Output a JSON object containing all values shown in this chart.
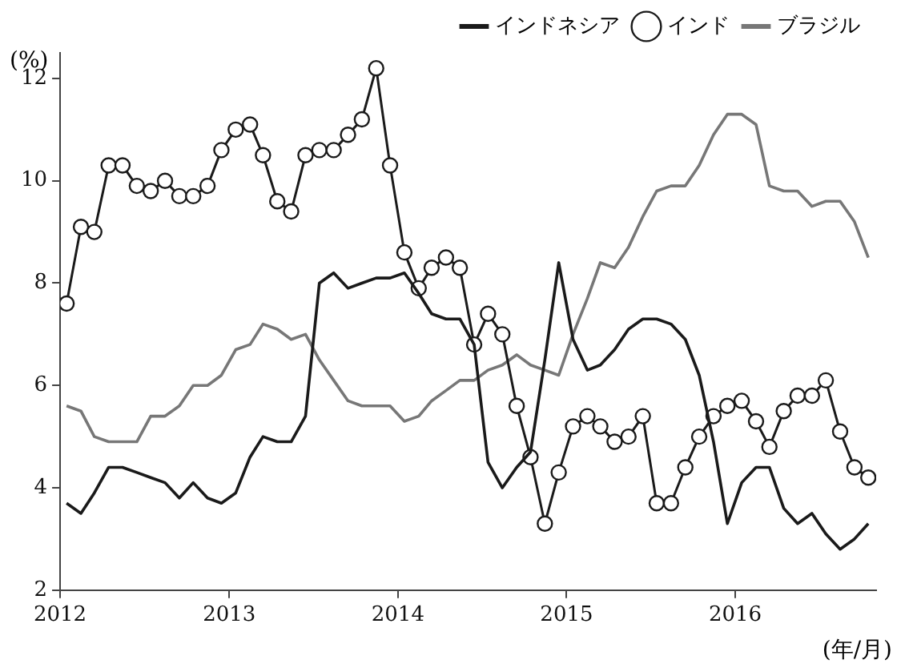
{
  "chart_data": {
    "type": "line",
    "ylabel": "(%)",
    "xlabel": "(年/月)",
    "xlim": [
      "2012-01-01",
      "2016-11-01"
    ],
    "xticks": [
      "2012",
      "2013",
      "2014",
      "2015",
      "2016"
    ],
    "ylim": [
      2,
      12.5
    ],
    "yticks": [
      2,
      4,
      6,
      8,
      10,
      12
    ],
    "grid": false,
    "legend": "top right",
    "x": [
      "2012-01-15",
      "2012-02-15",
      "2012-03-15",
      "2012-04-15",
      "2012-05-15",
      "2012-06-15",
      "2012-07-15",
      "2012-08-15",
      "2012-09-15",
      "2012-10-15",
      "2012-11-15",
      "2012-12-15",
      "2013-01-15",
      "2013-02-15",
      "2013-03-15",
      "2013-04-15",
      "2013-05-15",
      "2013-06-15",
      "2013-07-15",
      "2013-08-15",
      "2013-09-15",
      "2013-10-15",
      "2013-11-15",
      "2013-12-15",
      "2014-01-15",
      "2014-02-15",
      "2014-03-15",
      "2014-04-15",
      "2014-05-15",
      "2014-06-15",
      "2014-07-15",
      "2014-08-15",
      "2014-09-15",
      "2014-10-15",
      "2014-11-15",
      "2014-12-15",
      "2015-01-15",
      "2015-02-15",
      "2015-03-15",
      "2015-04-15",
      "2015-05-15",
      "2015-06-15",
      "2015-07-15",
      "2015-08-15",
      "2015-09-15",
      "2015-10-15",
      "2015-11-15",
      "2015-12-15",
      "2016-01-15",
      "2016-02-15",
      "2016-03-15",
      "2016-04-15",
      "2016-05-15",
      "2016-06-15",
      "2016-07-15",
      "2016-08-15",
      "2016-09-15",
      "2016-10-15"
    ],
    "series": [
      {
        "name": "インドネシア",
        "color": "#1a1a1a",
        "marker": "none",
        "values": [
          3.7,
          3.5,
          3.9,
          4.4,
          4.4,
          4.3,
          4.2,
          4.1,
          3.8,
          4.1,
          3.8,
          3.7,
          3.9,
          4.6,
          5.0,
          4.9,
          4.9,
          5.4,
          8.0,
          8.2,
          7.9,
          8.0,
          8.1,
          8.1,
          8.2,
          7.8,
          7.4,
          7.3,
          7.3,
          6.8,
          4.5,
          4.0,
          4.4,
          4.7,
          6.5,
          8.4,
          6.9,
          6.3,
          6.4,
          6.7,
          7.1,
          7.3,
          7.3,
          7.2,
          6.9,
          6.2,
          4.9,
          3.3,
          4.1,
          4.4,
          4.4,
          3.6,
          3.3,
          3.5,
          3.1,
          2.8,
          3.0,
          3.3
        ]
      },
      {
        "name": "インド",
        "color": "#1a1a1a",
        "marker": "circle",
        "values": [
          7.6,
          9.1,
          9.0,
          10.3,
          10.3,
          9.9,
          9.8,
          10.0,
          9.7,
          9.7,
          9.9,
          10.6,
          11.0,
          11.1,
          10.5,
          9.6,
          9.4,
          10.5,
          10.6,
          10.6,
          10.9,
          11.2,
          12.2,
          10.3,
          8.6,
          7.9,
          8.3,
          8.5,
          8.3,
          6.8,
          7.4,
          7.0,
          5.6,
          4.6,
          3.3,
          4.3,
          5.2,
          5.4,
          5.2,
          4.9,
          5.0,
          5.4,
          3.7,
          3.7,
          4.4,
          5.0,
          5.4,
          5.6,
          5.7,
          5.3,
          4.8,
          5.5,
          5.8,
          5.8,
          6.1,
          5.1,
          4.4,
          4.2
        ]
      },
      {
        "name": "ブラジル",
        "color": "#777777",
        "marker": "none",
        "values": [
          5.6,
          5.5,
          5.0,
          4.9,
          4.9,
          4.9,
          5.4,
          5.4,
          5.6,
          6.0,
          6.0,
          6.2,
          6.7,
          6.8,
          7.2,
          7.1,
          6.9,
          7.0,
          6.5,
          6.1,
          5.7,
          5.6,
          5.6,
          5.6,
          5.3,
          5.4,
          5.7,
          5.9,
          6.1,
          6.1,
          6.3,
          6.4,
          6.6,
          6.4,
          6.3,
          6.2,
          7.0,
          7.7,
          8.4,
          8.3,
          8.7,
          9.3,
          9.8,
          9.9,
          9.9,
          10.3,
          10.9,
          11.3,
          11.3,
          11.1,
          9.9,
          9.8,
          9.8,
          9.5,
          9.6,
          9.6,
          9.2,
          8.5
        ]
      }
    ]
  }
}
